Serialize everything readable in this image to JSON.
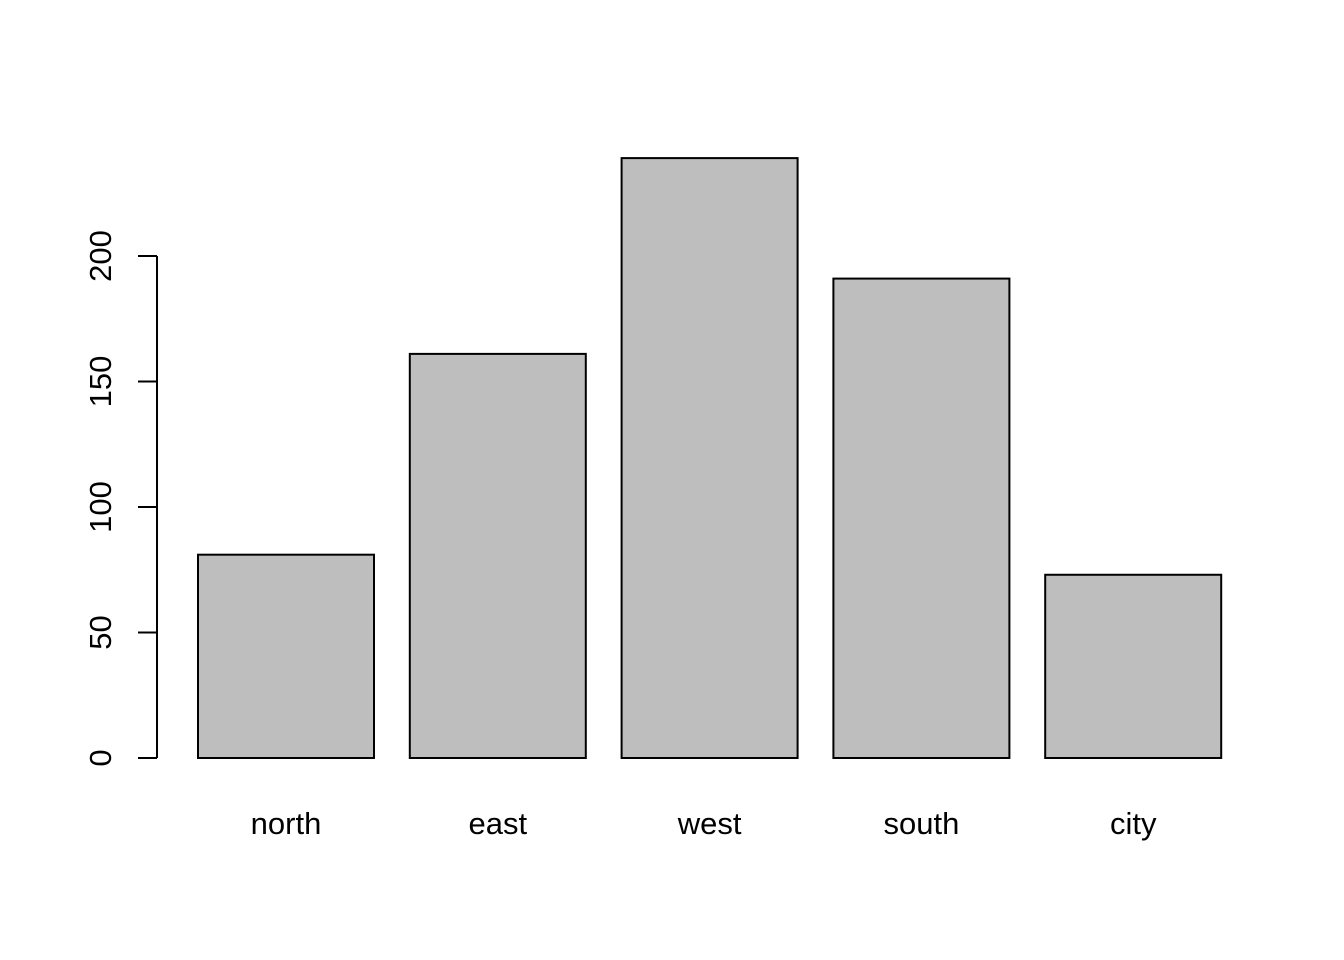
{
  "chart_data": {
    "type": "bar",
    "title": "",
    "xlabel": "",
    "ylabel": "",
    "categories": [
      "north",
      "east",
      "west",
      "south",
      "city"
    ],
    "values": [
      81,
      161,
      239,
      191,
      73
    ],
    "ylim": [
      0,
      239
    ],
    "yticks": [
      0,
      50,
      100,
      150,
      200
    ],
    "ytick_labels": [
      "0",
      "50",
      "100",
      "150",
      "200"
    ],
    "grid": false,
    "legend": "none",
    "bar_fill": "#bebebe",
    "bar_stroke": "#000000"
  }
}
